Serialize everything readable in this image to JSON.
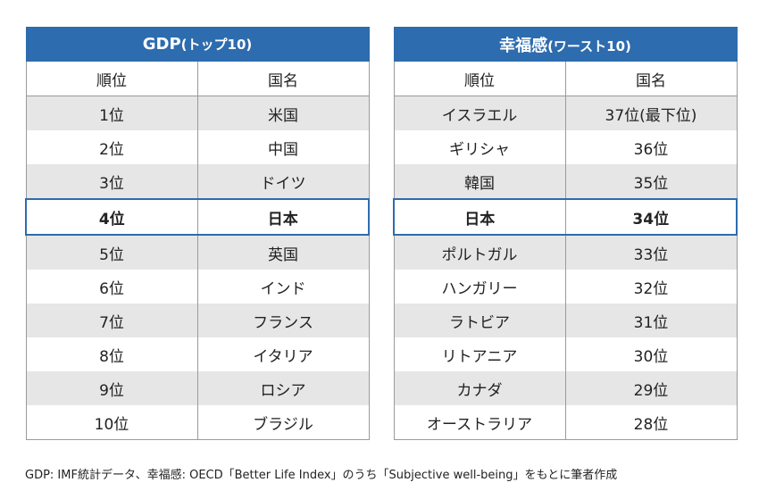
{
  "gdp": {
    "title": "GDP",
    "title_sub": "(トップ10)",
    "headers": [
      "順位",
      "国名"
    ],
    "rows": [
      [
        "1位",
        "米国"
      ],
      [
        "2位",
        "中国"
      ],
      [
        "3位",
        "ドイツ"
      ],
      [
        "4位",
        "日本"
      ],
      [
        "5位",
        "英国"
      ],
      [
        "6位",
        "インド"
      ],
      [
        "7位",
        "フランス"
      ],
      [
        "8位",
        "イタリア"
      ],
      [
        "9位",
        "ロシア"
      ],
      [
        "10位",
        "ブラジル"
      ]
    ],
    "highlight_index": 3
  },
  "happiness": {
    "title": "幸福感",
    "title_sub": "(ワースト10)",
    "headers": [
      "順位",
      "国名"
    ],
    "rows": [
      [
        "イスラエル",
        "37位(最下位)"
      ],
      [
        "ギリシャ",
        "36位"
      ],
      [
        "韓国",
        "35位"
      ],
      [
        "日本",
        "34位"
      ],
      [
        "ポルトガル",
        "33位"
      ],
      [
        "ハンガリー",
        "32位"
      ],
      [
        "ラトビア",
        "31位"
      ],
      [
        "リトアニア",
        "30位"
      ],
      [
        "カナダ",
        "29位"
      ],
      [
        "オーストラリア",
        "28位"
      ]
    ],
    "highlight_index": 3
  },
  "footnote": "GDP: IMF統計データ、幸福感: OECD「Better Life Index」のうち「Subjective well-being」をもとに筆者作成",
  "colors": {
    "header_blue": "#2d6cae",
    "stripe_gray": "#e6e6e6"
  }
}
